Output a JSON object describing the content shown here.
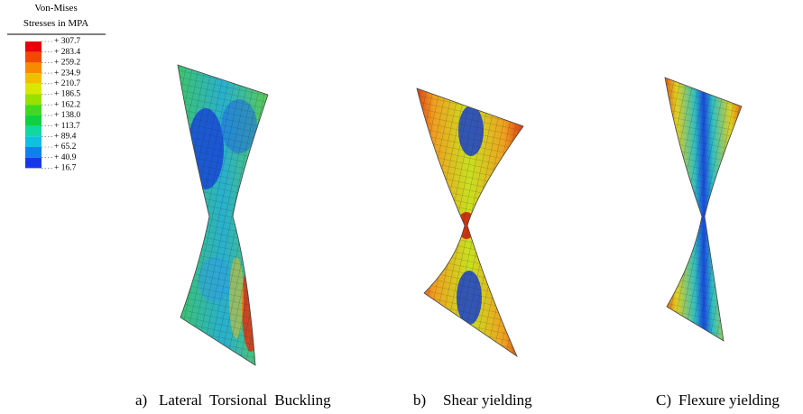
{
  "legend": {
    "title": [
      "Von-Mises",
      "Stresses in MPA"
    ],
    "labels": [
      "+ 307.7",
      "+ 283.4",
      "+ 259.2",
      "+ 234.9",
      "+ 210.7",
      "+ 186.5",
      "+ 162.2",
      "+ 138.0",
      "+ 113.7",
      "+ 89.4",
      "+ 65.2",
      "+ 40.9",
      "+ 16.7"
    ]
  },
  "panels": [
    {
      "label": "a)",
      "caption": "Lateral Torsional Buckling"
    },
    {
      "label": "b)",
      "caption": "Shear yielding"
    },
    {
      "label": "C)",
      "caption": "Flexure yielding"
    }
  ]
}
